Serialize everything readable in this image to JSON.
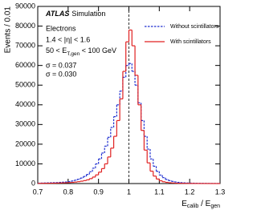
{
  "chart_data": {
    "type": "histogram",
    "ylabel": "Events / 0.01",
    "xlabel": [
      "E",
      "calib",
      " / E",
      "gen"
    ],
    "annotations": {
      "atlas": "ATLAS",
      "atlas_suffix": "Simulation",
      "particle": "Electrons",
      "eta": "1.4 < |η| < 1.6",
      "energy": [
        "50 < E",
        "T,gen",
        " < 100 GeV"
      ]
    },
    "bins": [
      0.7,
      0.71,
      0.72,
      0.73,
      0.74,
      0.75,
      0.76,
      0.77,
      0.78,
      0.79,
      0.8,
      0.81,
      0.82,
      0.83,
      0.84,
      0.85,
      0.86,
      0.87,
      0.88,
      0.89,
      0.9,
      0.91,
      0.92,
      0.93,
      0.94,
      0.95,
      0.96,
      0.97,
      0.98,
      0.99,
      1.0,
      1.01,
      1.02,
      1.03,
      1.04,
      1.05,
      1.06,
      1.07,
      1.08,
      1.09,
      1.1,
      1.11,
      1.12,
      1.13,
      1.14,
      1.15,
      1.16,
      1.17,
      1.18,
      1.19,
      1.2,
      1.21,
      1.22,
      1.23,
      1.24,
      1.25,
      1.26,
      1.27,
      1.28,
      1.29,
      1.3
    ],
    "series": [
      {
        "name": "Without scintillators",
        "color": "#1f2fd0",
        "dashed": true,
        "sigma_label": "σ = 0.037",
        "values": [
          200,
          250,
          300,
          350,
          400,
          450,
          500,
          600,
          700,
          800,
          1000,
          1300,
          1700,
          2200,
          2800,
          3600,
          4600,
          6000,
          7800,
          10000,
          12500,
          15500,
          19000,
          23500,
          28500,
          34000,
          40000,
          47000,
          54000,
          60000,
          61000,
          57000,
          50000,
          41000,
          32000,
          24000,
          17500,
          12500,
          8800,
          6200,
          4300,
          3000,
          2100,
          1500,
          1100,
          800,
          600,
          450,
          350,
          280,
          220,
          180,
          150,
          120,
          100,
          80,
          60,
          50,
          40,
          30
        ]
      },
      {
        "name": "With scintillators",
        "color": "#e02020",
        "dashed": false,
        "sigma_label": "σ = 0.030",
        "values": [
          100,
          120,
          140,
          160,
          180,
          200,
          250,
          300,
          350,
          400,
          500,
          600,
          750,
          950,
          1200,
          1500,
          1900,
          2500,
          3300,
          4400,
          5800,
          7600,
          10000,
          13500,
          18000,
          24000,
          32000,
          43000,
          57000,
          72000,
          78000,
          70000,
          55000,
          40000,
          27000,
          17000,
          10500,
          6300,
          3800,
          2300,
          1400,
          900,
          600,
          400,
          300,
          200,
          150,
          120,
          100,
          80,
          60,
          50,
          40,
          30,
          25,
          20,
          15,
          10,
          8,
          5
        ]
      }
    ],
    "vline": 1,
    "xlim": [
      0.7,
      1.3
    ],
    "xticks": [
      0.7,
      0.8,
      0.9,
      1,
      1.1,
      1.2,
      1.3
    ],
    "ylim": [
      0,
      90000
    ],
    "yticks": [
      0,
      10000,
      20000,
      30000,
      40000,
      50000,
      60000,
      70000,
      80000,
      90000
    ],
    "legend": "upper right"
  }
}
